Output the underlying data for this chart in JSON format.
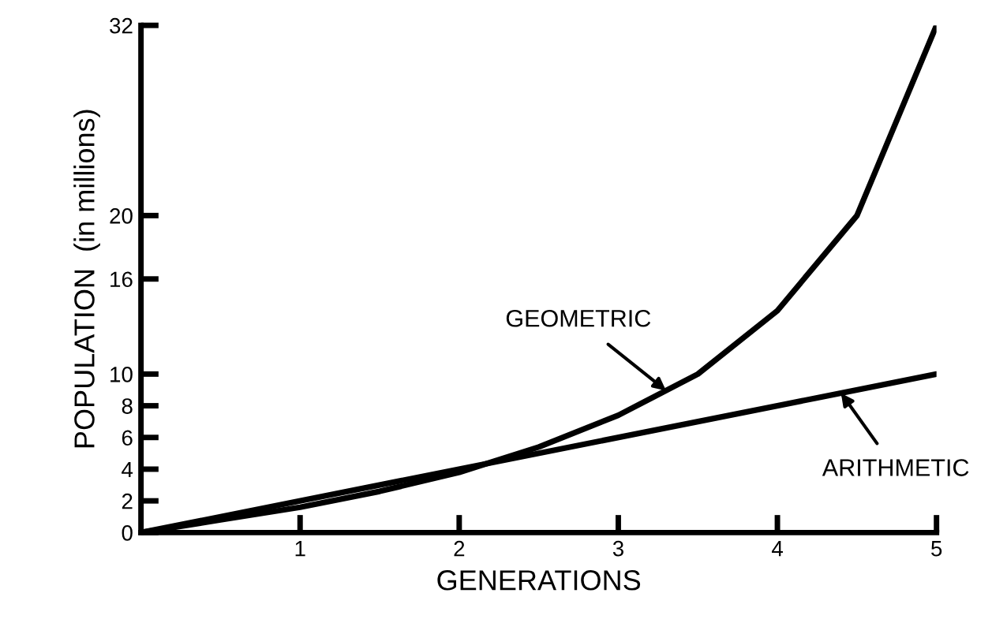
{
  "chart_data": {
    "type": "line",
    "xlabel": "GENERATIONS",
    "ylabel": "POPULATION  (in millions)",
    "xlim": [
      0,
      5
    ],
    "xticks": [
      1,
      2,
      3,
      4,
      5
    ],
    "ylim": [
      0,
      32
    ],
    "yticks": [
      0,
      2,
      4,
      6,
      8,
      10,
      16,
      20,
      32
    ],
    "series": [
      {
        "color": "#000000",
        "x": [
          0,
          0.5,
          1,
          1.5,
          2,
          2.5,
          3,
          3.5,
          4,
          4.5,
          5
        ],
        "values": [
          0,
          0.8,
          1.6,
          2.6,
          3.8,
          5.4,
          7.4,
          10,
          14,
          20,
          32
        ]
      },
      {
        "color": "#000000",
        "x": [
          0,
          5
        ],
        "values": [
          0,
          10
        ]
      }
    ],
    "annotations": [
      {
        "text": "GEOMETRIC",
        "x": 3.3,
        "y": 8.96
      },
      {
        "text": "ARITHMETIC",
        "x": 4.4,
        "y": 8.8
      }
    ],
    "grid": false,
    "legend": false,
    "marker": "none",
    "line_style": "solid"
  }
}
